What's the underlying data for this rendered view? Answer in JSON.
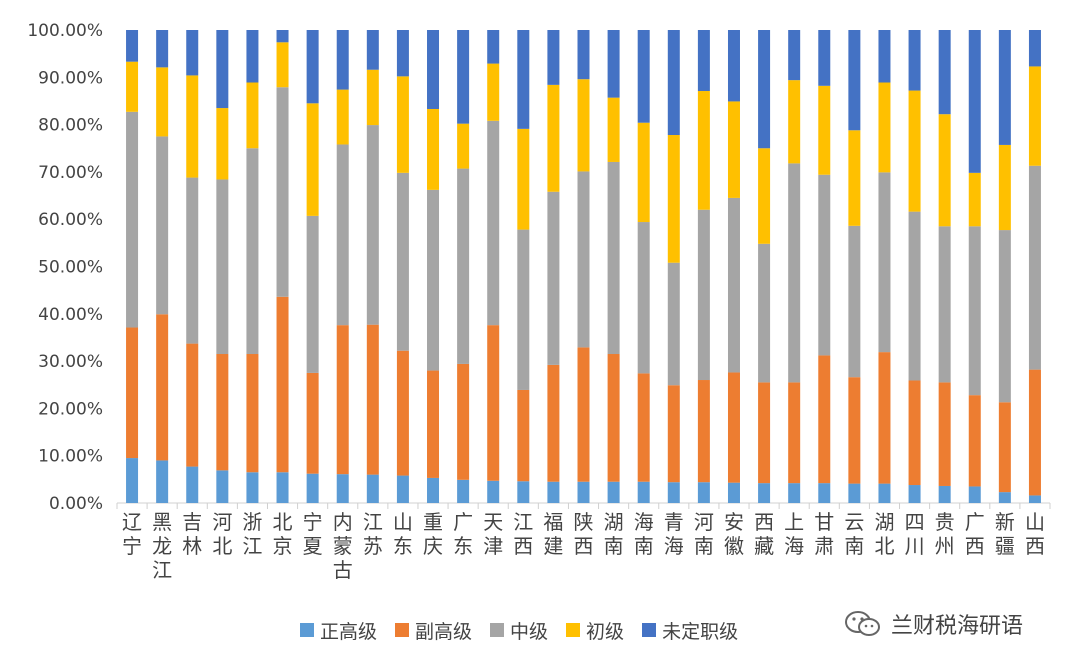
{
  "chart_data": {
    "type": "stacked-bar-100",
    "categories": [
      [
        "辽",
        "宁"
      ],
      [
        "黑",
        "龙",
        "江"
      ],
      [
        "吉",
        "林"
      ],
      [
        "河",
        "北"
      ],
      [
        "浙",
        "江"
      ],
      [
        "北",
        "京"
      ],
      [
        "宁",
        "夏"
      ],
      [
        "内",
        "蒙",
        "古"
      ],
      [
        "江",
        "苏"
      ],
      [
        "山",
        "东"
      ],
      [
        "重",
        "庆"
      ],
      [
        "广",
        "东"
      ],
      [
        "天",
        "津"
      ],
      [
        "江",
        "西"
      ],
      [
        "福",
        "建"
      ],
      [
        "陕",
        "西"
      ],
      [
        "湖",
        "南"
      ],
      [
        "海",
        "南"
      ],
      [
        "青",
        "海"
      ],
      [
        "河",
        "南"
      ],
      [
        "安",
        "徽"
      ],
      [
        "西",
        "藏"
      ],
      [
        "上",
        "海"
      ],
      [
        "甘",
        "肃"
      ],
      [
        "云",
        "南"
      ],
      [
        "湖",
        "北"
      ],
      [
        "四",
        "川"
      ],
      [
        "贵",
        "州"
      ],
      [
        "广",
        "西"
      ],
      [
        "新",
        "疆"
      ],
      [
        "山",
        "西"
      ]
    ],
    "series": [
      {
        "name": "正高级",
        "color": "#5b9bd5",
        "values": [
          9.5,
          9.0,
          7.7,
          6.9,
          6.5,
          6.5,
          6.2,
          6.1,
          6.0,
          5.8,
          5.3,
          4.9,
          4.7,
          4.6,
          4.5,
          4.5,
          4.5,
          4.5,
          4.4,
          4.4,
          4.3,
          4.2,
          4.2,
          4.2,
          4.1,
          4.1,
          3.8,
          3.6,
          3.5,
          2.3,
          1.6
        ]
      },
      {
        "name": "副高级",
        "color": "#ed7d31",
        "values": [
          27.6,
          30.9,
          26.0,
          24.6,
          25.0,
          37.1,
          21.3,
          31.5,
          31.7,
          26.4,
          22.7,
          24.5,
          32.9,
          19.3,
          24.7,
          28.4,
          27.0,
          22.9,
          20.5,
          21.6,
          23.3,
          21.3,
          21.3,
          27.0,
          22.5,
          27.8,
          22.1,
          21.9,
          19.3,
          19.0,
          26.6
        ]
      },
      {
        "name": "中级",
        "color": "#a5a5a5",
        "values": [
          45.6,
          37.6,
          35.1,
          36.9,
          43.5,
          44.3,
          33.2,
          38.2,
          42.2,
          37.6,
          38.2,
          41.3,
          43.2,
          33.9,
          36.6,
          37.2,
          40.6,
          32.0,
          25.9,
          36.0,
          36.9,
          29.3,
          46.3,
          38.2,
          32.0,
          38.0,
          35.7,
          33.0,
          35.7,
          36.4,
          43.1
        ]
      },
      {
        "name": "初级",
        "color": "#ffc000",
        "values": [
          10.6,
          14.6,
          21.6,
          15.1,
          13.9,
          9.5,
          23.8,
          11.6,
          11.7,
          20.4,
          17.1,
          9.5,
          12.1,
          21.3,
          22.6,
          19.5,
          13.6,
          21.0,
          27.0,
          25.1,
          20.4,
          20.2,
          17.6,
          18.8,
          20.2,
          19.0,
          25.6,
          23.7,
          11.3,
          18.0,
          21.0
        ]
      },
      {
        "name": "未定职级",
        "color": "#4472c4",
        "values": [
          6.7,
          7.9,
          9.6,
          16.5,
          11.1,
          2.6,
          15.5,
          12.6,
          8.4,
          9.8,
          16.7,
          19.8,
          7.1,
          20.9,
          11.6,
          10.4,
          14.3,
          19.6,
          22.2,
          12.9,
          15.1,
          25.0,
          10.6,
          11.8,
          21.2,
          11.1,
          12.8,
          17.8,
          30.2,
          24.3,
          7.7
        ]
      }
    ],
    "yticks": [
      "0.00%",
      "10.00%",
      "20.00%",
      "30.00%",
      "40.00%",
      "50.00%",
      "60.00%",
      "70.00%",
      "80.00%",
      "90.00%",
      "100.00%"
    ],
    "ylim": [
      0,
      100
    ],
    "grid": false,
    "legend_position": "bottom"
  },
  "watermark": {
    "text": "兰财税海研语",
    "icon": "wechat-icon"
  }
}
